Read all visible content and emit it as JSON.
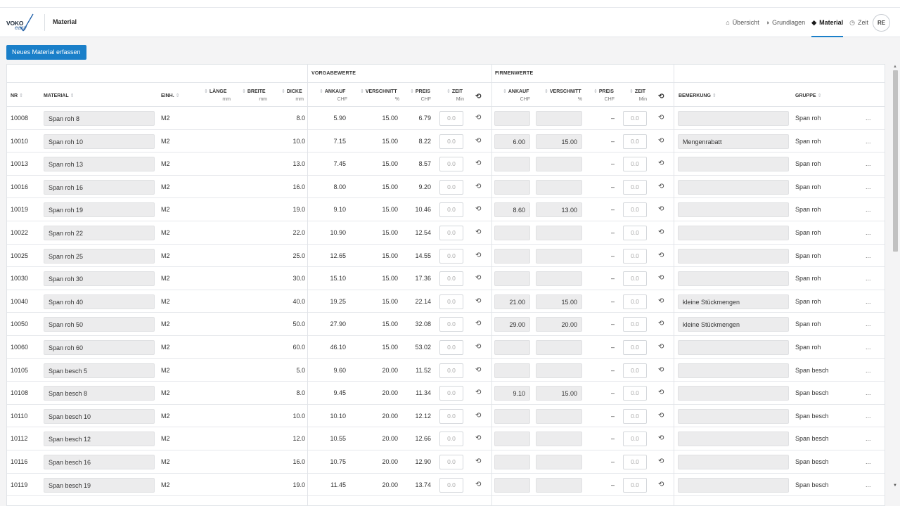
{
  "app": {
    "logo_text": "VOKO",
    "logo_sub": "easy",
    "page_title": "Material",
    "avatar": "RE"
  },
  "nav": [
    {
      "label": "Übersicht",
      "icon": "home-icon",
      "glyph": "⌂",
      "active": false
    },
    {
      "label": "Grundlagen",
      "icon": "cube-icon",
      "glyph": "◑",
      "active": false
    },
    {
      "label": "Material",
      "icon": "material-icon",
      "glyph": "◆",
      "active": true
    },
    {
      "label": "Zeit",
      "icon": "clock-icon",
      "glyph": "◷",
      "active": false
    }
  ],
  "toolbar": {
    "new_label": "Neues Material erfassen"
  },
  "groups": {
    "vorgabe": "VORGABEWERTE",
    "firmen": "FIRMENWERTE"
  },
  "columns": {
    "nr": "NR",
    "material": "MATERIAL",
    "einh": "EINH.",
    "laenge": "LÄNGE",
    "laenge_unit": "mm",
    "breite": "BREITE",
    "breite_unit": "mm",
    "dicke": "DICKE",
    "dicke_unit": "mm",
    "ankauf": "ANKAUF",
    "ankauf_unit": "CHF",
    "verschnitt": "VERSCHNITT",
    "verschnitt_unit": "%",
    "preis": "PREIS",
    "preis_unit": "CHF",
    "zeit": "ZEIT",
    "zeit_unit": "Min",
    "f_ankauf": "ANKAUF",
    "f_ankauf_unit": "CHF",
    "f_verschnitt": "VERSCHNITT",
    "f_verschnitt_unit": "%",
    "f_preis": "PREIS",
    "f_preis_unit": "CHF",
    "f_zeit": "ZEIT",
    "f_zeit_unit": "Min",
    "bemerkung": "BEMERKUNG",
    "gruppe": "GRUPPE"
  },
  "colors": {
    "accent": "#1a7fc9",
    "input_bg": "#ececed"
  },
  "rows": [
    {
      "nr": "10008",
      "material": "Span roh 8",
      "einh": "M2",
      "dicke": "8.0",
      "ankauf": "5.90",
      "verschnitt": "15.00",
      "preis": "6.79",
      "zeit": "0.0",
      "f_ankauf": "",
      "f_verschnitt": "",
      "f_preis": "–",
      "f_zeit": "0.0",
      "bemerkung": "",
      "gruppe": "Span roh",
      "more": "..."
    },
    {
      "nr": "10010",
      "material": "Span roh 10",
      "einh": "M2",
      "dicke": "10.0",
      "ankauf": "7.15",
      "verschnitt": "15.00",
      "preis": "8.22",
      "zeit": "0.0",
      "f_ankauf": "6.00",
      "f_verschnitt": "15.00",
      "f_preis": "–",
      "f_zeit": "0.0",
      "bemerkung": "Mengenrabatt",
      "gruppe": "Span roh",
      "more": "..."
    },
    {
      "nr": "10013",
      "material": "Span roh 13",
      "einh": "M2",
      "dicke": "13.0",
      "ankauf": "7.45",
      "verschnitt": "15.00",
      "preis": "8.57",
      "zeit": "0.0",
      "f_ankauf": "",
      "f_verschnitt": "",
      "f_preis": "–",
      "f_zeit": "0.0",
      "bemerkung": "",
      "gruppe": "Span roh",
      "more": "..."
    },
    {
      "nr": "10016",
      "material": "Span roh 16",
      "einh": "M2",
      "dicke": "16.0",
      "ankauf": "8.00",
      "verschnitt": "15.00",
      "preis": "9.20",
      "zeit": "0.0",
      "f_ankauf": "",
      "f_verschnitt": "",
      "f_preis": "–",
      "f_zeit": "0.0",
      "bemerkung": "",
      "gruppe": "Span roh",
      "more": "..."
    },
    {
      "nr": "10019",
      "material": "Span roh 19",
      "einh": "M2",
      "dicke": "19.0",
      "ankauf": "9.10",
      "verschnitt": "15.00",
      "preis": "10.46",
      "zeit": "0.0",
      "f_ankauf": "8.60",
      "f_verschnitt": "13.00",
      "f_preis": "–",
      "f_zeit": "0.0",
      "bemerkung": "",
      "gruppe": "Span roh",
      "more": "..."
    },
    {
      "nr": "10022",
      "material": "Span roh 22",
      "einh": "M2",
      "dicke": "22.0",
      "ankauf": "10.90",
      "verschnitt": "15.00",
      "preis": "12.54",
      "zeit": "0.0",
      "f_ankauf": "",
      "f_verschnitt": "",
      "f_preis": "–",
      "f_zeit": "0.0",
      "bemerkung": "",
      "gruppe": "Span roh",
      "more": "..."
    },
    {
      "nr": "10025",
      "material": "Span roh 25",
      "einh": "M2",
      "dicke": "25.0",
      "ankauf": "12.65",
      "verschnitt": "15.00",
      "preis": "14.55",
      "zeit": "0.0",
      "f_ankauf": "",
      "f_verschnitt": "",
      "f_preis": "–",
      "f_zeit": "0.0",
      "bemerkung": "",
      "gruppe": "Span roh",
      "more": "..."
    },
    {
      "nr": "10030",
      "material": "Span roh 30",
      "einh": "M2",
      "dicke": "30.0",
      "ankauf": "15.10",
      "verschnitt": "15.00",
      "preis": "17.36",
      "zeit": "0.0",
      "f_ankauf": "",
      "f_verschnitt": "",
      "f_preis": "–",
      "f_zeit": "0.0",
      "bemerkung": "",
      "gruppe": "Span roh",
      "more": "..."
    },
    {
      "nr": "10040",
      "material": "Span roh 40",
      "einh": "M2",
      "dicke": "40.0",
      "ankauf": "19.25",
      "verschnitt": "15.00",
      "preis": "22.14",
      "zeit": "0.0",
      "f_ankauf": "21.00",
      "f_verschnitt": "15.00",
      "f_preis": "–",
      "f_zeit": "0.0",
      "bemerkung": "kleine Stückmengen",
      "gruppe": "Span roh",
      "more": "..."
    },
    {
      "nr": "10050",
      "material": "Span roh 50",
      "einh": "M2",
      "dicke": "50.0",
      "ankauf": "27.90",
      "verschnitt": "15.00",
      "preis": "32.08",
      "zeit": "0.0",
      "f_ankauf": "29.00",
      "f_verschnitt": "20.00",
      "f_preis": "–",
      "f_zeit": "0.0",
      "bemerkung": "kleine Stückmengen",
      "gruppe": "Span roh",
      "more": "..."
    },
    {
      "nr": "10060",
      "material": "Span roh 60",
      "einh": "M2",
      "dicke": "60.0",
      "ankauf": "46.10",
      "verschnitt": "15.00",
      "preis": "53.02",
      "zeit": "0.0",
      "f_ankauf": "",
      "f_verschnitt": "",
      "f_preis": "–",
      "f_zeit": "0.0",
      "bemerkung": "",
      "gruppe": "Span roh",
      "more": "..."
    },
    {
      "nr": "10105",
      "material": "Span besch 5",
      "einh": "M2",
      "dicke": "5.0",
      "ankauf": "9.60",
      "verschnitt": "20.00",
      "preis": "11.52",
      "zeit": "0.0",
      "f_ankauf": "",
      "f_verschnitt": "",
      "f_preis": "–",
      "f_zeit": "0.0",
      "bemerkung": "",
      "gruppe": "Span besch",
      "more": "..."
    },
    {
      "nr": "10108",
      "material": "Span besch 8",
      "einh": "M2",
      "dicke": "8.0",
      "ankauf": "9.45",
      "verschnitt": "20.00",
      "preis": "11.34",
      "zeit": "0.0",
      "f_ankauf": "9.10",
      "f_verschnitt": "15.00",
      "f_preis": "–",
      "f_zeit": "0.0",
      "bemerkung": "",
      "gruppe": "Span besch",
      "more": "..."
    },
    {
      "nr": "10110",
      "material": "Span besch 10",
      "einh": "M2",
      "dicke": "10.0",
      "ankauf": "10.10",
      "verschnitt": "20.00",
      "preis": "12.12",
      "zeit": "0.0",
      "f_ankauf": "",
      "f_verschnitt": "",
      "f_preis": "–",
      "f_zeit": "0.0",
      "bemerkung": "",
      "gruppe": "Span besch",
      "more": "..."
    },
    {
      "nr": "10112",
      "material": "Span besch 12",
      "einh": "M2",
      "dicke": "12.0",
      "ankauf": "10.55",
      "verschnitt": "20.00",
      "preis": "12.66",
      "zeit": "0.0",
      "f_ankauf": "",
      "f_verschnitt": "",
      "f_preis": "–",
      "f_zeit": "0.0",
      "bemerkung": "",
      "gruppe": "Span besch",
      "more": "..."
    },
    {
      "nr": "10116",
      "material": "Span besch 16",
      "einh": "M2",
      "dicke": "16.0",
      "ankauf": "10.75",
      "verschnitt": "20.00",
      "preis": "12.90",
      "zeit": "0.0",
      "f_ankauf": "",
      "f_verschnitt": "",
      "f_preis": "–",
      "f_zeit": "0.0",
      "bemerkung": "",
      "gruppe": "Span besch",
      "more": "..."
    },
    {
      "nr": "10119",
      "material": "Span besch 19",
      "einh": "M2",
      "dicke": "19.0",
      "ankauf": "11.45",
      "verschnitt": "20.00",
      "preis": "13.74",
      "zeit": "0.0",
      "f_ankauf": "",
      "f_verschnitt": "",
      "f_preis": "–",
      "f_zeit": "0.0",
      "bemerkung": "",
      "gruppe": "Span besch",
      "more": "..."
    }
  ]
}
